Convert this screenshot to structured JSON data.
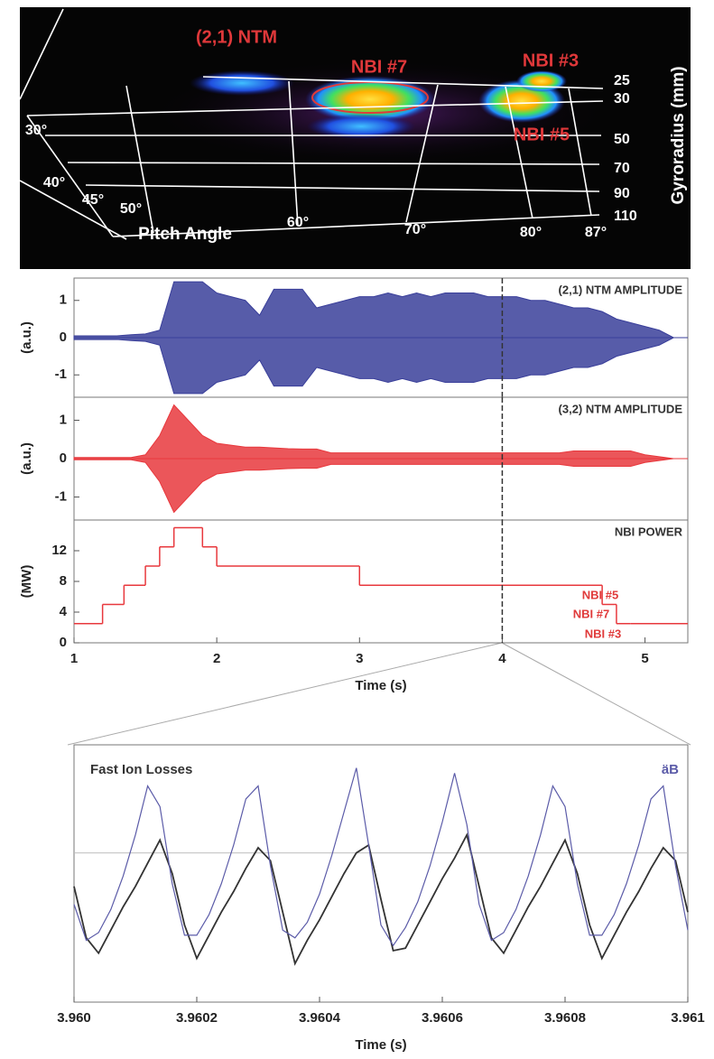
{
  "scintillator": {
    "labels": [
      "(2,1) NTM",
      "NBI #7",
      "NBI #3",
      "NBI #5"
    ],
    "gyroradius_label": "Gyroradius (mm)",
    "gyroradius_ticks": [
      "25",
      "30",
      "50",
      "70",
      "90",
      "110"
    ],
    "pitch_label": "Pitch Angle",
    "pitch_ticks": [
      "30°",
      "40°",
      "45°",
      "50°",
      "60°",
      "70°",
      "80°",
      "87°"
    ]
  },
  "chart_data": [
    {
      "type": "area",
      "annotation": "(2,1) NTM AMPLITUDE",
      "ylabel": "(a.u.)",
      "color": "#3a3f9a",
      "x": [
        1.0,
        1.1,
        1.2,
        1.3,
        1.4,
        1.5,
        1.6,
        1.7,
        1.8,
        1.9,
        2.0,
        2.1,
        2.2,
        2.3,
        2.4,
        2.5,
        2.6,
        2.7,
        2.8,
        2.9,
        3.0,
        3.1,
        3.2,
        3.3,
        3.4,
        3.5,
        3.6,
        3.7,
        3.8,
        3.9,
        4.0,
        4.1,
        4.2,
        4.3,
        4.4,
        4.5,
        4.6,
        4.7,
        4.8,
        4.9,
        5.0,
        5.1,
        5.2,
        5.3
      ],
      "values": [
        0.05,
        0.05,
        0.05,
        0.05,
        0.08,
        0.1,
        0.2,
        1.5,
        1.5,
        1.5,
        1.2,
        1.1,
        1.0,
        0.6,
        1.3,
        1.3,
        1.3,
        0.8,
        0.9,
        1.0,
        1.1,
        1.1,
        1.2,
        1.1,
        1.2,
        1.1,
        1.2,
        1.2,
        1.2,
        1.1,
        1.1,
        1.1,
        1.0,
        1.0,
        0.9,
        0.8,
        0.8,
        0.7,
        0.5,
        0.4,
        0.3,
        0.2,
        0.0,
        0.0
      ],
      "xlim": [
        1,
        5.3
      ],
      "ylim": [
        -1.6,
        1.6
      ],
      "yticks": [
        -1,
        0,
        1
      ],
      "marker_x": 4
    },
    {
      "type": "area",
      "annotation": "(3,2) NTM AMPLITUDE",
      "ylabel": "(a.u.)",
      "color": "#e8383d",
      "x": [
        1.0,
        1.1,
        1.2,
        1.3,
        1.4,
        1.5,
        1.6,
        1.7,
        1.8,
        1.9,
        2.0,
        2.1,
        2.2,
        2.3,
        2.4,
        2.5,
        2.6,
        2.7,
        2.8,
        2.9,
        3.0,
        3.1,
        3.2,
        3.3,
        3.4,
        3.5,
        3.6,
        3.7,
        3.8,
        3.9,
        4.0,
        4.1,
        4.2,
        4.3,
        4.4,
        4.5,
        4.6,
        4.7,
        4.8,
        4.9,
        5.0,
        5.1,
        5.2,
        5.3
      ],
      "values": [
        0.03,
        0.03,
        0.03,
        0.03,
        0.03,
        0.1,
        0.6,
        1.4,
        1.0,
        0.6,
        0.4,
        0.35,
        0.3,
        0.3,
        0.28,
        0.26,
        0.25,
        0.25,
        0.15,
        0.15,
        0.15,
        0.15,
        0.15,
        0.15,
        0.15,
        0.15,
        0.15,
        0.15,
        0.15,
        0.15,
        0.15,
        0.15,
        0.15,
        0.15,
        0.15,
        0.2,
        0.2,
        0.2,
        0.2,
        0.2,
        0.1,
        0.05,
        0.0,
        0.0
      ],
      "xlim": [
        1,
        5.3
      ],
      "ylim": [
        -1.6,
        1.6
      ],
      "yticks": [
        -1,
        0,
        1
      ],
      "marker_x": 4
    },
    {
      "type": "step",
      "annotation": "NBI POWER",
      "ylabel": "(MW)",
      "xlabel": "Time (s)",
      "color": "#e8383d",
      "x": [
        1.0,
        1.2,
        1.35,
        1.5,
        1.6,
        1.7,
        1.9,
        2.0,
        3.0,
        4.7,
        4.8,
        4.9
      ],
      "values": [
        2.5,
        5,
        7.5,
        10,
        12.5,
        15,
        12.5,
        10,
        7.5,
        5,
        2.5,
        2.5
      ],
      "labels": [
        "NBI #5",
        "NBI #7",
        "NBI #3"
      ],
      "xlim": [
        1,
        5.3
      ],
      "ylim": [
        0,
        16
      ],
      "yticks": [
        0,
        4,
        8,
        12
      ],
      "xticks": [
        1,
        2,
        3,
        4,
        5
      ],
      "marker_x": 4
    },
    {
      "type": "line",
      "xlabel": "Time (s)",
      "x": [
        3.96,
        3.96002,
        3.96004,
        3.96006,
        3.96008,
        3.9601,
        3.96012,
        3.96014,
        3.96016,
        3.96018,
        3.9602,
        3.96022,
        3.96024,
        3.96026,
        3.96028,
        3.9603,
        3.96032,
        3.96034,
        3.96036,
        3.96038,
        3.9604,
        3.96042,
        3.96044,
        3.96046,
        3.96048,
        3.9605,
        3.96052,
        3.96054,
        3.96056,
        3.96058,
        3.9606,
        3.96062,
        3.96064,
        3.96066,
        3.96068,
        3.9607,
        3.96072,
        3.96074,
        3.96076,
        3.96078,
        3.9608,
        3.96082,
        3.96084,
        3.96086,
        3.96088,
        3.9609,
        3.96092,
        3.96094,
        3.96096,
        3.96098,
        3.961
      ],
      "series": [
        {
          "name": "Fast Ion Losses",
          "color": "#333333",
          "values": [
            0.45,
            0.25,
            0.19,
            0.28,
            0.37,
            0.45,
            0.54,
            0.63,
            0.5,
            0.3,
            0.17,
            0.26,
            0.35,
            0.43,
            0.52,
            0.6,
            0.55,
            0.35,
            0.15,
            0.24,
            0.32,
            0.41,
            0.5,
            0.58,
            0.61,
            0.4,
            0.2,
            0.21,
            0.3,
            0.39,
            0.48,
            0.56,
            0.65,
            0.45,
            0.25,
            0.19,
            0.28,
            0.37,
            0.45,
            0.54,
            0.63,
            0.5,
            0.3,
            0.17,
            0.26,
            0.35,
            0.43,
            0.52,
            0.6,
            0.55,
            0.35
          ]
        },
        {
          "name": "äB",
          "color": "#5b5ba8",
          "values": [
            0.38,
            0.24,
            0.27,
            0.36,
            0.49,
            0.65,
            0.84,
            0.76,
            0.46,
            0.26,
            0.26,
            0.34,
            0.46,
            0.61,
            0.79,
            0.84,
            0.53,
            0.28,
            0.25,
            0.31,
            0.42,
            0.57,
            0.74,
            0.91,
            0.61,
            0.3,
            0.22,
            0.29,
            0.39,
            0.53,
            0.7,
            0.89,
            0.69,
            0.38,
            0.24,
            0.27,
            0.36,
            0.49,
            0.65,
            0.84,
            0.76,
            0.46,
            0.26,
            0.26,
            0.34,
            0.46,
            0.61,
            0.79,
            0.84,
            0.53,
            0.28
          ]
        }
      ],
      "xlim": [
        3.96,
        3.961
      ],
      "ylim": [
        0,
        1
      ],
      "hline": 0.58,
      "xticks": [
        {
          "value": 3.96,
          "label": "3.960"
        },
        3.9602,
        3.9604,
        3.9606,
        3.9608,
        3.961
      ]
    }
  ]
}
